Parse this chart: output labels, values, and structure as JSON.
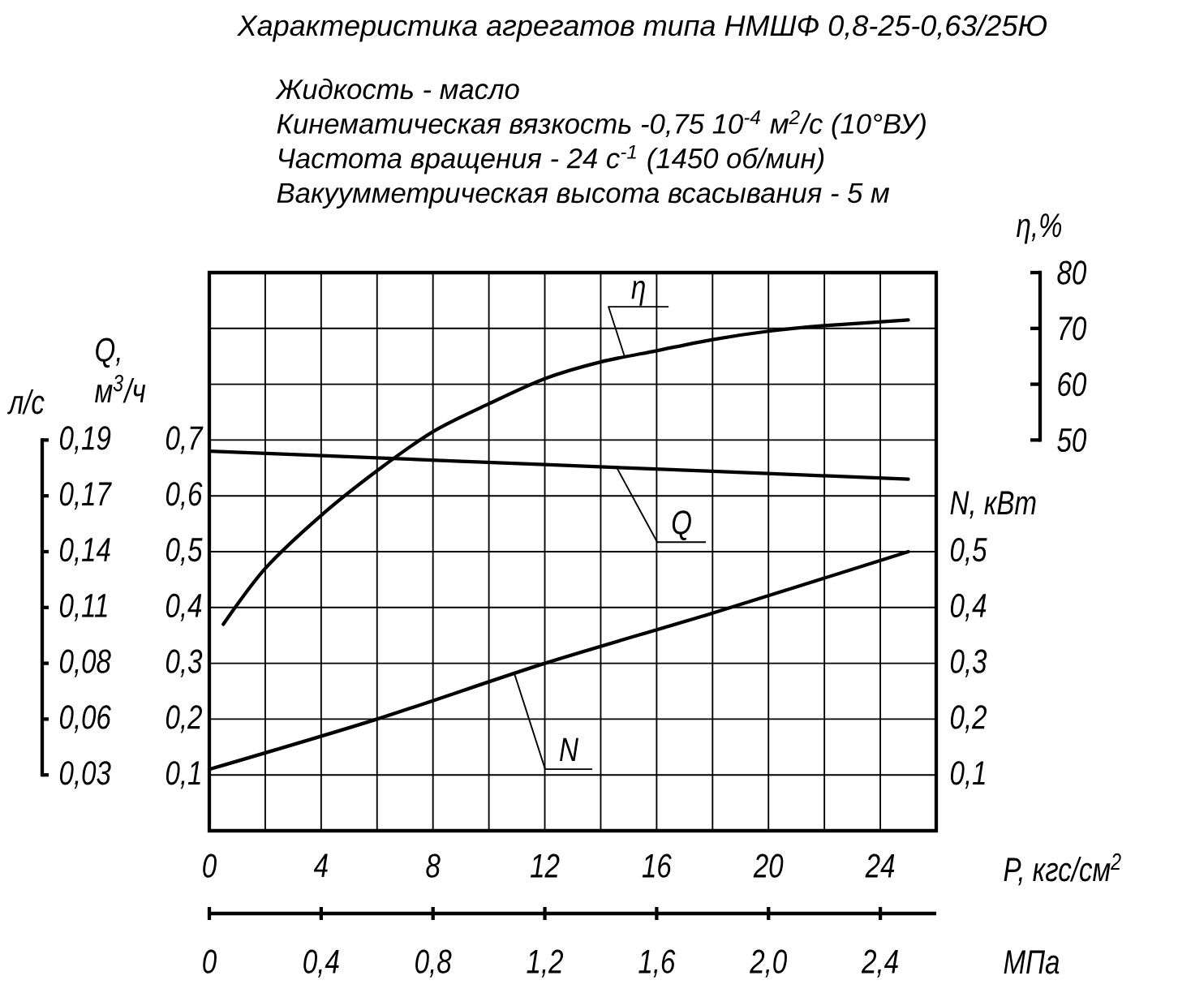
{
  "chart_data": {
    "type": "line",
    "title": "Характеристика агрегатов типа НМШФ 0,8-25-0,63/25Ю",
    "annotations": [
      "Жидкость - масло",
      "Кинематическая вязкость -0,75 10$^{-4}$ м$^{2}$/с (10°ВУ)",
      "Частота вращения - 24 с$^{-1}$ (1450 об/мин)",
      "Вакуумметрическая высота всасывания - 5 м",
      "л/с",
      "0,19",
      "0,17",
      "0,14",
      "0,11",
      "0,08",
      "0,06",
      "0,03"
    ],
    "xlabel": "P, кгс/см$^{2}$",
    "x2label": "МПа",
    "ylabel": "Q, м$^{3}$/ч",
    "y2label": "N, кВт",
    "y3label": "η,%",
    "xlim": [
      0,
      26
    ],
    "xticks": [
      0,
      {
        "value": 2,
        "label": null
      },
      4,
      {
        "value": 6,
        "label": null
      },
      8,
      {
        "value": 10,
        "label": null
      },
      12,
      {
        "value": 14,
        "label": null
      },
      16,
      {
        "value": 18,
        "label": null
      },
      20,
      {
        "value": 22,
        "label": null
      },
      24
    ],
    "x2lim": [
      0,
      2.6
    ],
    "x2ticks": [
      0,
      {
        "value": 0.4,
        "label": "0,4"
      },
      {
        "value": 0.8,
        "label": "0,8"
      },
      {
        "value": 1.2,
        "label": "1,2"
      },
      {
        "value": 1.6,
        "label": "1,6"
      },
      {
        "value": 2.0,
        "label": "2,0"
      },
      {
        "value": 2.4,
        "label": "2,4"
      }
    ],
    "ylim": [
      0,
      1.0
    ],
    "yticks": [
      {
        "value": 0.1,
        "label": "0,1"
      },
      {
        "value": 0.2,
        "label": "0,2"
      },
      {
        "value": 0.3,
        "label": "0,3"
      },
      {
        "value": 0.4,
        "label": "0,4"
      },
      {
        "value": 0.5,
        "label": "0,5"
      },
      {
        "value": 0.6,
        "label": "0,6"
      },
      {
        "value": 0.7,
        "label": "0,7"
      },
      {
        "value": 0.8,
        "label": null
      },
      {
        "value": 0.9,
        "label": null
      }
    ],
    "y2lim": [
      0,
      1.0
    ],
    "y2ticks": [
      {
        "value": 0.1,
        "label": "0,1"
      },
      {
        "value": 0.2,
        "label": "0,2"
      },
      {
        "value": 0.3,
        "label": "0,3"
      },
      {
        "value": 0.4,
        "label": "0,4"
      },
      {
        "value": 0.5,
        "label": "0,5"
      }
    ],
    "y3lim": [
      -20,
      80
    ],
    "y3ticks": [
      50,
      60,
      70,
      80
    ],
    "grid": true,
    "series": [
      {
        "name": "Q",
        "color": "#000000",
        "x": [
          0,
          6,
          12,
          18,
          25
        ],
        "values": [
          0.68,
          0.668,
          0.656,
          0.644,
          0.63
        ]
      },
      {
        "name": "N",
        "color": "#000000",
        "axis": "y2",
        "x": [
          0,
          6,
          12,
          18,
          25
        ],
        "values": [
          0.11,
          0.2,
          0.3,
          0.39,
          0.5
        ]
      },
      {
        "name": "η",
        "color": "#000000",
        "axis": "y3",
        "x": [
          0.5,
          2,
          4,
          6,
          8,
          10,
          12,
          14,
          16,
          18,
          20,
          22,
          25
        ],
        "values": [
          17,
          27,
          36.5,
          44.5,
          51.5,
          56.5,
          61,
          64,
          66,
          68,
          69.5,
          70.5,
          71.5
        ]
      }
    ]
  }
}
